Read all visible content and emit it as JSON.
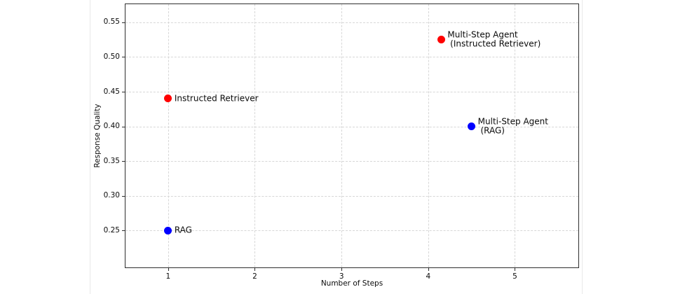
{
  "chart_data": {
    "type": "scatter",
    "title": "",
    "xlabel": "Number of Steps",
    "ylabel": "Response Quality",
    "xlim": [
      0.5,
      5.74
    ],
    "ylim": [
      0.196,
      0.577
    ],
    "xticks": [
      "1",
      "2",
      "3",
      "4",
      "5"
    ],
    "yticks": [
      "0.25",
      "0.30",
      "0.35",
      "0.40",
      "0.45",
      "0.50",
      "0.55"
    ],
    "grid": "dashed",
    "legend": "none",
    "points": [
      {
        "label": "RAG",
        "x": 1,
        "y": 0.25,
        "color": "#0000ff"
      },
      {
        "label": "Instructed Retriever",
        "x": 1,
        "y": 0.44,
        "color": "#ff0000"
      },
      {
        "label": "Multi-Step Agent\n (RAG)",
        "x": 4.5,
        "y": 0.4,
        "color": "#0000ff"
      },
      {
        "label": "Multi-Step Agent\n (Instructed Retriever)",
        "x": 4.15,
        "y": 0.525,
        "color": "#ff0000"
      }
    ],
    "colors": {
      "background": "#ffffff",
      "grid": "#d7d7d7",
      "spine": "#2e2e2e",
      "text": "#0a0a0a",
      "point_red": "#ff0000",
      "point_blue": "#0000ff"
    }
  }
}
